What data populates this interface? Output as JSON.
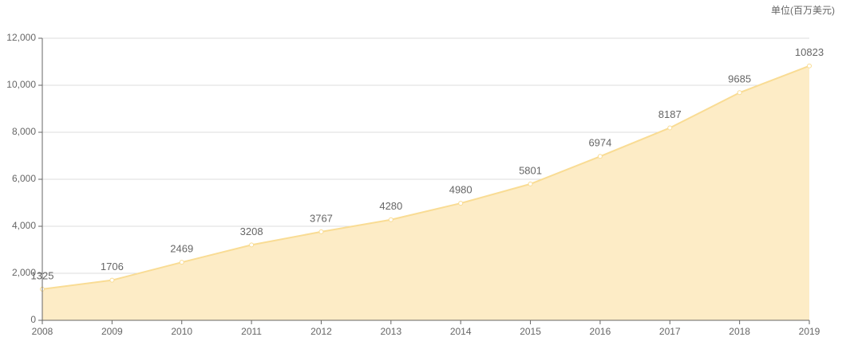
{
  "chart_data": {
    "type": "area",
    "unit_label": "单位(百万美元)",
    "x": [
      2008,
      2009,
      2010,
      2011,
      2012,
      2013,
      2014,
      2015,
      2016,
      2017,
      2018,
      2019
    ],
    "xlim": [
      2008,
      2019
    ],
    "xticks": [
      2008,
      2009,
      2010,
      2011,
      2012,
      2013,
      2014,
      2015,
      2016,
      2017,
      2018,
      2019
    ],
    "values": [
      1325,
      1706,
      2469,
      3208,
      3767,
      4280,
      4980,
      5801,
      6974,
      8187,
      9685,
      10823
    ],
    "color": "#f9dc94",
    "fill_color": "#fdecc6",
    "ylim": [
      0,
      12000
    ],
    "yticks": [
      0,
      {
        "value": 2000,
        "label": "2,000"
      },
      {
        "value": 4000,
        "label": "4,000"
      },
      {
        "value": 6000,
        "label": "6,000"
      },
      {
        "value": 8000,
        "label": "8,000"
      },
      {
        "value": 10000,
        "label": "10,000"
      },
      {
        "value": 12000,
        "label": "12,000"
      }
    ],
    "grid": true
  }
}
